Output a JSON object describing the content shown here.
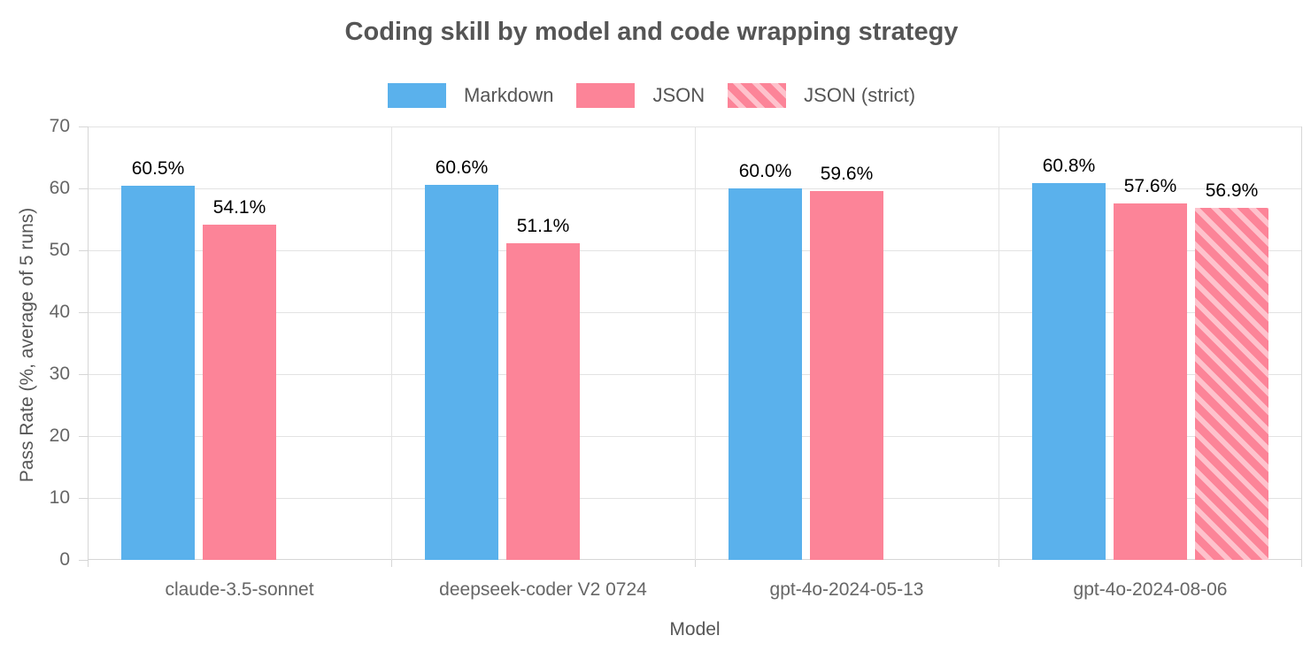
{
  "chart_data": {
    "type": "bar",
    "title": "Coding skill by model and code wrapping strategy",
    "xlabel": "Model",
    "ylabel": "Pass Rate (%, average of 5 runs)",
    "categories": [
      "claude-3.5-sonnet",
      "deepseek-coder V2 0724",
      "gpt-4o-2024-05-13",
      "gpt-4o-2024-08-06"
    ],
    "series": [
      {
        "name": "Markdown",
        "color": "#5AB1EC",
        "hatch": false,
        "values": [
          60.5,
          60.6,
          60.0,
          60.8
        ]
      },
      {
        "name": "JSON",
        "color": "#FC8498",
        "hatch": false,
        "values": [
          54.1,
          51.1,
          59.6,
          57.6
        ]
      },
      {
        "name": "JSON (strict)",
        "color": "#FC8498",
        "hatch": true,
        "values": [
          null,
          null,
          null,
          56.9
        ]
      }
    ],
    "ylim": [
      0,
      70
    ],
    "yticks": [
      0,
      10,
      20,
      30,
      40,
      50,
      60,
      70
    ],
    "value_suffix": "%",
    "value_decimals": 1,
    "legend_position": "top",
    "grid": true,
    "hatch_stripe_color": "rgba(255,255,255,0.5)",
    "colors": {
      "grid": "#E3E3E3",
      "axis": "#D6D6D6",
      "title": "#555555",
      "tick_label": "#666666",
      "value_label": "#000000"
    }
  }
}
